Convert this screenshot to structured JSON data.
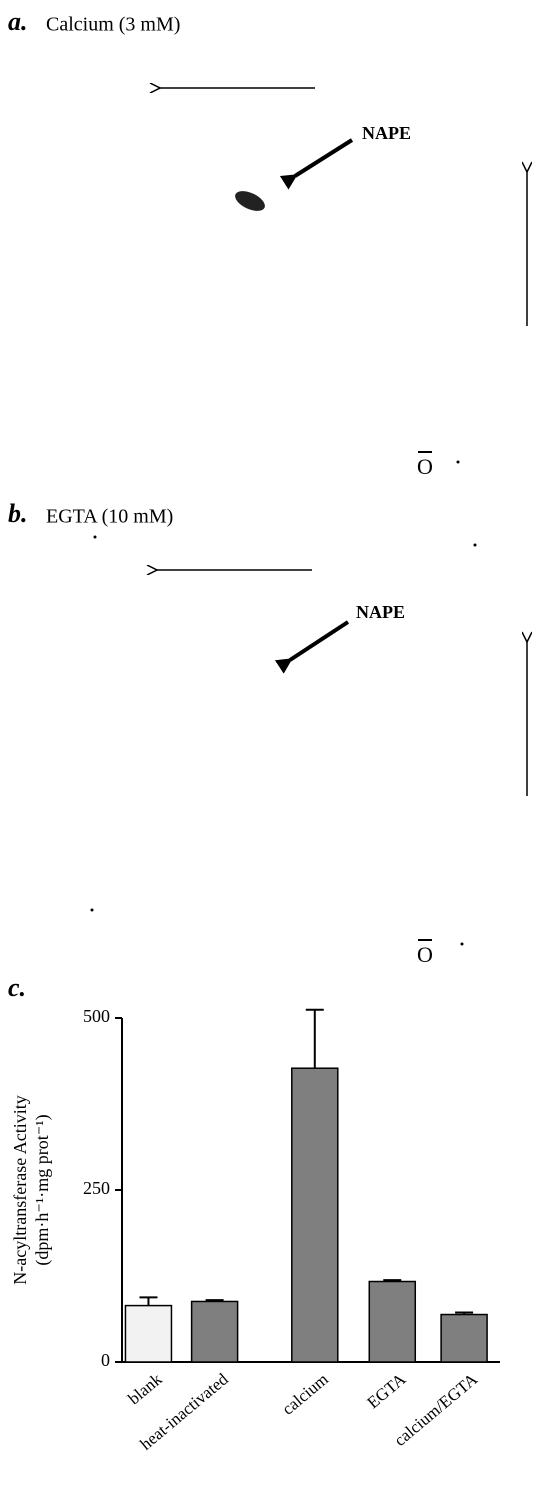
{
  "panels": [
    {
      "label": "a.",
      "title": "Calcium (3 mM)",
      "spot_label": "NAPE",
      "origin": "O"
    },
    {
      "label": "b.",
      "title": "EGTA (10 mM)",
      "spot_label": "NAPE",
      "origin": "O"
    }
  ],
  "chart_data": {
    "type": "bar",
    "label": "c.",
    "ylabel": [
      "N-acyltransferase Activity",
      "(dpm·h⁻¹·mg prot⁻¹)"
    ],
    "categories": [
      "blank",
      "heat-inactivated",
      "calcium",
      "EGTA",
      "calcium/EGTA"
    ],
    "values": [
      82,
      88,
      427,
      117,
      69
    ],
    "errors": [
      12,
      2,
      85,
      2,
      3
    ],
    "colors": [
      "#f2f2f2",
      "#7f7f7f",
      "#7f7f7f",
      "#7f7f7f",
      "#7f7f7f"
    ],
    "ylim": [
      0,
      500
    ],
    "yticks": [
      0,
      250,
      500
    ]
  }
}
